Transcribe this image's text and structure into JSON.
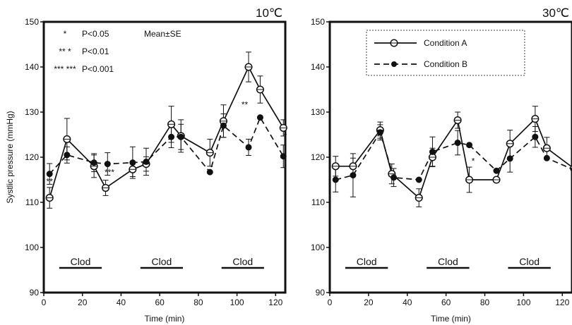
{
  "chart_data": [
    {
      "type": "line",
      "title": "10℃",
      "xlabel": "Time (min)",
      "ylabel": "Systlic pressure (mmHg)",
      "xlim": [
        0,
        125
      ],
      "ylim": [
        90,
        150
      ],
      "x_ticks": [
        "0",
        "20",
        "40",
        "60",
        "80",
        "100",
        "120"
      ],
      "y_ticks": [
        "90",
        "100",
        "110",
        "120",
        "130",
        "140",
        "150"
      ],
      "series": [
        {
          "name": "Condition A",
          "marker": "open-circle",
          "line": "solid",
          "x": [
            3,
            12,
            26,
            32,
            46,
            53,
            66,
            71,
            86,
            93,
            106,
            112,
            124
          ],
          "y": [
            111,
            124,
            118,
            113.2,
            117.3,
            118.5,
            127.3,
            124.7,
            121,
            128,
            140,
            135,
            126.5
          ],
          "err": [
            2.3,
            4.6,
            2.5,
            1.7,
            1.6,
            1.6,
            4.0,
            3.6,
            3.0,
            3.6,
            3.3,
            3.0,
            1.8
          ]
        },
        {
          "name": "Condition B",
          "marker": "filled-circle",
          "line": "dashed",
          "x": [
            3,
            12,
            26,
            33,
            46,
            53,
            66,
            71,
            86,
            93,
            106,
            112,
            124
          ],
          "y": [
            116.3,
            120.5,
            118.8,
            118.5,
            118.8,
            119,
            124.5,
            124.5,
            116.7,
            127,
            122.2,
            128.8,
            120.2
          ],
          "err": [
            2.3,
            1.8,
            2.0,
            2.5,
            3.5,
            3.0,
            2.4,
            2.8,
            0,
            2.6,
            1.8,
            0,
            2.5
          ]
        }
      ],
      "annotations": {
        "legend_lines": [
          {
            "stars": "*",
            "label": "P<0.05"
          },
          {
            "stars": "** *",
            "label": "P<0.01"
          },
          {
            "stars": "*** ***",
            "label": "P<0.001"
          }
        ],
        "mean_se": "Mean±SE",
        "marks": [
          {
            "x": 3,
            "y": 114,
            "text": "**"
          },
          {
            "x": 34,
            "y": 116,
            "text": "***"
          },
          {
            "x": 104,
            "y": 131,
            "text": "**"
          },
          {
            "x": 125,
            "y": 124,
            "text": "*"
          }
        ],
        "clod": [
          {
            "label": "Clod",
            "x_start": 8,
            "x_end": 30
          },
          {
            "label": "Clod",
            "x_start": 50,
            "x_end": 72
          },
          {
            "label": "Clod",
            "x_start": 92,
            "x_end": 114
          }
        ]
      }
    },
    {
      "type": "line",
      "title": "30℃",
      "xlabel": "Time (min)",
      "ylabel": "",
      "xlim": [
        0,
        125
      ],
      "ylim": [
        90,
        150
      ],
      "x_ticks": [
        "0",
        "20",
        "40",
        "60",
        "80",
        "100",
        "120"
      ],
      "y_ticks": [
        "90",
        "100",
        "110",
        "120",
        "130",
        "140",
        "150"
      ],
      "series": [
        {
          "name": "Condition A",
          "marker": "open-circle",
          "line": "solid",
          "x": [
            3,
            12,
            26,
            32,
            46,
            53,
            66,
            72,
            86,
            93,
            106,
            112,
            126
          ],
          "y": [
            118,
            118,
            126,
            116.3,
            111,
            120,
            128.2,
            115,
            115,
            123,
            128.5,
            122,
            117.5
          ],
          "err": [
            2.2,
            1.8,
            1.8,
            2.2,
            2.0,
            2.0,
            1.8,
            2.8,
            0,
            3.0,
            2.8,
            2.4,
            1.8
          ]
        },
        {
          "name": "Condition B",
          "marker": "filled-circle",
          "line": "dashed",
          "x": [
            3,
            12,
            26,
            33,
            46,
            53,
            66,
            72,
            86,
            93,
            106,
            112,
            126
          ],
          "y": [
            115,
            116,
            125.5,
            115.5,
            115,
            121.2,
            123.2,
            122.7,
            117,
            119.7,
            124.5,
            119.8,
            117.2
          ],
          "err": [
            2.7,
            4.8,
            1.7,
            2.0,
            0,
            3.3,
            2.7,
            0,
            0,
            3.0,
            2.3,
            0,
            3.3
          ]
        }
      ],
      "annotations": {
        "marks": [
          {
            "x": 74,
            "y": 118.5,
            "text": "*"
          }
        ],
        "clod": [
          {
            "label": "Clod",
            "x_start": 8,
            "x_end": 30
          },
          {
            "label": "Clod",
            "x_start": 50,
            "x_end": 72
          },
          {
            "label": "Clod",
            "x_start": 92,
            "x_end": 114
          }
        ]
      }
    }
  ]
}
